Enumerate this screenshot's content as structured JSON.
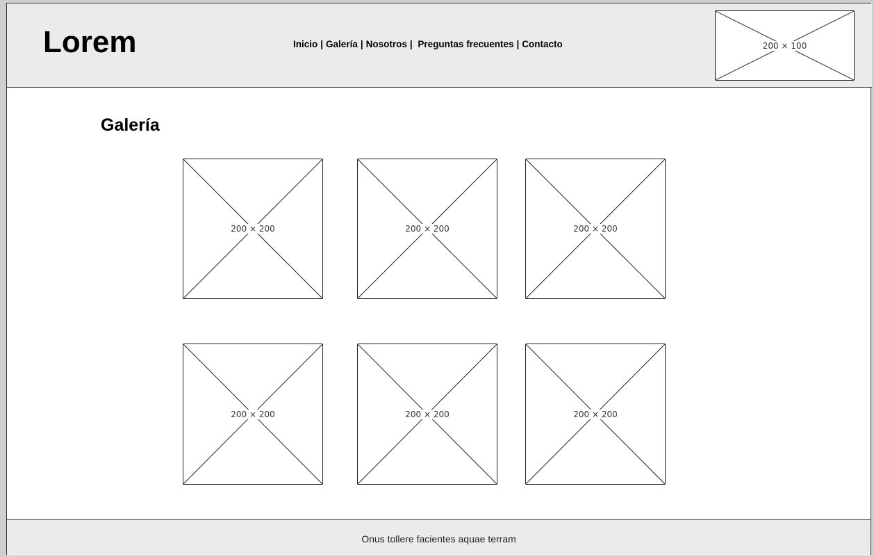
{
  "header": {
    "logo": "Lorem",
    "nav": {
      "items": [
        "Inicio",
        "Galería",
        "Nosotros",
        "Preguntas frecuentes",
        "Contacto"
      ],
      "separator": "|"
    },
    "banner_label": "200 × 100"
  },
  "main": {
    "title": "Galería",
    "gallery": [
      {
        "label": "200 × 200"
      },
      {
        "label": "200 × 200"
      },
      {
        "label": "200 × 200"
      },
      {
        "label": "200 × 200"
      },
      {
        "label": "200 × 200"
      },
      {
        "label": "200 × 200"
      }
    ]
  },
  "footer": {
    "text": "Onus tollere facientes aquae terram"
  }
}
